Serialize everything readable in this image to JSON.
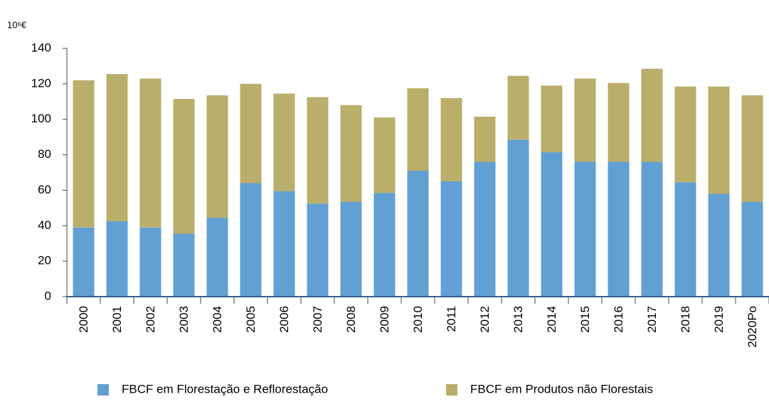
{
  "chart_data": {
    "type": "stacked_bar",
    "y_label": "10⁶€",
    "categories": [
      "2000",
      "2001",
      "2002",
      "2003",
      "2004",
      "2005",
      "2006",
      "2007",
      "2008",
      "2009",
      "2010",
      "2011",
      "2012",
      "2013",
      "2014",
      "2015",
      "2016",
      "2017",
      "2018",
      "2019",
      "2020Po"
    ],
    "series": [
      {
        "name": "FBCF em Florestação e Reflorestação",
        "color": "#629fd3",
        "values": [
          39,
          42.5,
          39,
          35.5,
          44.5,
          64,
          59.5,
          52.5,
          53.5,
          58.5,
          71,
          65,
          76,
          88.5,
          81.5,
          76,
          76,
          76,
          64.5,
          58,
          53.5
        ]
      },
      {
        "name": "FBCF em Produtos não Florestais",
        "color": "#b9ae6a",
        "values": [
          83,
          83,
          84,
          76,
          69,
          56,
          55,
          60,
          54.5,
          42.5,
          46.5,
          47,
          25.5,
          36,
          37.5,
          47,
          44.5,
          52.5,
          54,
          60.5,
          60
        ]
      }
    ],
    "ylim": [
      0,
      140
    ],
    "yticks": [
      0,
      20,
      40,
      60,
      80,
      100,
      120,
      140
    ],
    "legend": "bottom"
  }
}
